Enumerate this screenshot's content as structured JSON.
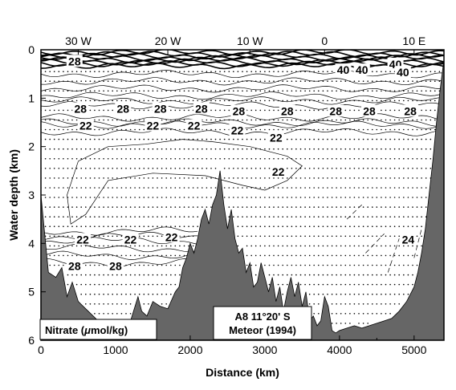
{
  "chart_data": {
    "type": "section-contour",
    "xlabel": "Distance (km)",
    "ylabel": "Water depth (km)",
    "xlim": [
      0,
      5400
    ],
    "ylim": [
      0,
      6
    ],
    "y_inverted": true,
    "x_ticks": [
      0,
      1000,
      2000,
      3000,
      4000,
      5000
    ],
    "x_tick_labels": [
      "0",
      "1000",
      "2000",
      "3000",
      "4000",
      "5000"
    ],
    "y_ticks": [
      0,
      1,
      2,
      3,
      4,
      5,
      6
    ],
    "y_tick_labels": [
      "0",
      "1",
      "2",
      "3",
      "4",
      "5",
      "6"
    ],
    "top_axis": {
      "ticks_km": [
        500,
        1700,
        2800,
        3800,
        5000
      ],
      "labels": [
        "30 W",
        "20 W",
        "10 W",
        "0",
        "10 E"
      ]
    },
    "contour_labels": [
      {
        "text": "28",
        "x": 450,
        "y": 0.27
      },
      {
        "text": "40",
        "x": 4050,
        "y": 0.45
      },
      {
        "text": "40",
        "x": 4300,
        "y": 0.45
      },
      {
        "text": "40",
        "x": 4750,
        "y": 0.33
      },
      {
        "text": "40",
        "x": 4850,
        "y": 0.5
      },
      {
        "text": "28",
        "x": 530,
        "y": 1.25
      },
      {
        "text": "28",
        "x": 1100,
        "y": 1.25
      },
      {
        "text": "28",
        "x": 1600,
        "y": 1.25
      },
      {
        "text": "28",
        "x": 2150,
        "y": 1.25
      },
      {
        "text": "28",
        "x": 2650,
        "y": 1.3
      },
      {
        "text": "28",
        "x": 3300,
        "y": 1.3
      },
      {
        "text": "28",
        "x": 3950,
        "y": 1.3
      },
      {
        "text": "28",
        "x": 4400,
        "y": 1.3
      },
      {
        "text": "28",
        "x": 4950,
        "y": 1.3
      },
      {
        "text": "22",
        "x": 600,
        "y": 1.6
      },
      {
        "text": "22",
        "x": 1500,
        "y": 1.6
      },
      {
        "text": "22",
        "x": 2050,
        "y": 1.6
      },
      {
        "text": "22",
        "x": 2630,
        "y": 1.7
      },
      {
        "text": "22",
        "x": 3150,
        "y": 1.85
      },
      {
        "text": "22",
        "x": 3180,
        "y": 2.55
      },
      {
        "text": "22",
        "x": 560,
        "y": 3.95
      },
      {
        "text": "22",
        "x": 1200,
        "y": 3.95
      },
      {
        "text": "22",
        "x": 1750,
        "y": 3.9
      },
      {
        "text": "28",
        "x": 450,
        "y": 4.5
      },
      {
        "text": "28",
        "x": 1000,
        "y": 4.5
      },
      {
        "text": "24",
        "x": 4920,
        "y": 3.95
      }
    ],
    "bottom_topography": {
      "x": [
        0,
        100,
        200,
        280,
        350,
        420,
        500,
        600,
        700,
        800,
        900,
        1000,
        1100,
        1200,
        1300,
        1350,
        1420,
        1500,
        1600,
        1700,
        1800,
        1850,
        1900,
        1950,
        2000,
        2050,
        2100,
        2150,
        2200,
        2250,
        2300,
        2350,
        2400,
        2450,
        2500,
        2550,
        2600,
        2650,
        2700,
        2750,
        2800,
        2850,
        2900,
        2950,
        3000,
        3050,
        3100,
        3150,
        3200,
        3250,
        3300,
        3350,
        3400,
        3450,
        3500,
        3550,
        3600,
        3650,
        3700,
        3750,
        3800,
        3850,
        3900,
        3950,
        4000,
        4100,
        4200,
        4300,
        4400,
        4500,
        4600,
        4700,
        4800,
        4900,
        5000,
        5050,
        5100,
        5150,
        5200,
        5250,
        5300,
        5350,
        5400
      ],
      "depth": [
        3.0,
        4.6,
        4.7,
        4.5,
        5.1,
        4.8,
        5.2,
        5.35,
        5.5,
        5.65,
        5.8,
        5.85,
        5.9,
        5.6,
        5.1,
        5.4,
        5.5,
        5.2,
        5.3,
        5.35,
        5.0,
        4.9,
        4.5,
        4.3,
        4.0,
        4.2,
        3.9,
        3.5,
        3.3,
        3.6,
        3.2,
        3.0,
        2.5,
        3.2,
        3.7,
        3.3,
        3.9,
        4.2,
        4.1,
        4.6,
        4.4,
        4.9,
        4.8,
        4.4,
        4.7,
        5.0,
        4.7,
        5.2,
        4.9,
        5.4,
        5.0,
        4.7,
        5.1,
        4.8,
        5.3,
        5.0,
        5.6,
        5.5,
        5.7,
        5.6,
        5.1,
        5.3,
        5.8,
        5.85,
        5.8,
        5.75,
        5.7,
        5.75,
        5.7,
        5.65,
        5.6,
        5.55,
        5.4,
        5.2,
        4.9,
        4.6,
        4.2,
        3.7,
        3.0,
        2.3,
        1.5,
        0.8,
        0.2
      ]
    },
    "station_x": [
      0,
      60,
      120,
      180,
      240,
      300,
      360,
      420,
      480,
      540,
      600,
      660,
      720,
      780,
      840,
      900,
      960,
      1020,
      1080,
      1140,
      1200,
      1260,
      1320,
      1380,
      1440,
      1500,
      1560,
      1620,
      1680,
      1740,
      1800,
      1860,
      1920,
      1980,
      2040,
      2100,
      2160,
      2220,
      2280,
      2340,
      2400,
      2460,
      2520,
      2580,
      2640,
      2700,
      2760,
      2820,
      2880,
      2940,
      3000,
      3060,
      3120,
      3180,
      3240,
      3300,
      3360,
      3420,
      3480,
      3540,
      3600,
      3660,
      3720,
      3780,
      3840,
      3900,
      3960,
      4020,
      4080,
      4140,
      4200,
      4260,
      4320,
      4380,
      4440,
      4500,
      4560,
      4620,
      4680,
      4740,
      4800,
      4860,
      4920,
      4980,
      5040,
      5100,
      5160,
      5220,
      5280,
      5340
    ]
  },
  "annotations": {
    "variable_label_prefix": "Nitrate (",
    "variable_label_mu": "μ",
    "variable_label_suffix": "mol/kg)",
    "section_line1": "A8 11°20' S",
    "section_line2": "Meteor (1994)"
  },
  "colors": {
    "topography": "#666666",
    "frame": "#000000",
    "contour": "#000000",
    "background": "#ffffff"
  }
}
